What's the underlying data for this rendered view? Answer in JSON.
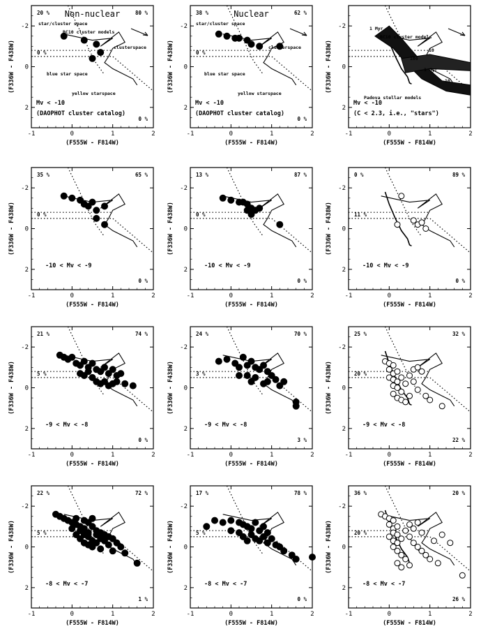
{
  "figure": {
    "x_label": "(F555W - F814W)",
    "y_label": "(F336W - F438W)"
  },
  "chart_data": [
    {
      "type": "scatter",
      "title": "Non-nuclear",
      "xlim": [
        -1,
        2
      ],
      "ylim": [
        3,
        -3
      ],
      "x_ticks": [
        "-1",
        "0",
        "1",
        "2"
      ],
      "y_ticks": [
        "-2",
        "0",
        "2"
      ],
      "percent_labels": {
        "top_left": "20 %",
        "top_right": "80 %",
        "mid_left": "0 %",
        "bottom_right": "0 %"
      },
      "condition": "Mv < -10",
      "condition_extra": "(DAOPHOT cluster catalog)",
      "annotations": [
        "star/cluster space",
        "BC10 cluster models",
        "clusterspace",
        "blue star space",
        "yellow starspace"
      ],
      "marker": "filled",
      "points": [
        [
          -0.2,
          -1.5
        ],
        [
          0.3,
          -1.3
        ],
        [
          0.6,
          -1.1
        ],
        [
          0.7,
          -0.7
        ],
        [
          0.5,
          -0.4
        ]
      ]
    },
    {
      "type": "scatter",
      "title": "Nuclear",
      "xlim": [
        -1,
        2
      ],
      "ylim": [
        3,
        -3
      ],
      "x_ticks": [
        "-1",
        "0",
        "1",
        "2"
      ],
      "y_ticks": [
        "-2",
        "0",
        "2"
      ],
      "percent_labels": {
        "top_left": "38 %",
        "top_right": "62 %",
        "mid_left": "0 %",
        "bottom_right": "0 %"
      },
      "condition": "Mv < -10",
      "condition_extra": "(DAOPHOT cluster catalog)",
      "annotations": [
        "star/cluster space",
        "clusterspace",
        "blue star space",
        "yellow starspace"
      ],
      "marker": "filled",
      "points": [
        [
          -0.3,
          -1.6
        ],
        [
          -0.1,
          -1.5
        ],
        [
          0.1,
          -1.4
        ],
        [
          0.2,
          -1.4
        ],
        [
          0.4,
          -1.3
        ],
        [
          0.5,
          -1.1
        ],
        [
          0.7,
          -1.0
        ],
        [
          1.2,
          -1.0
        ]
      ]
    },
    {
      "type": "scatter",
      "title": "",
      "xlim": [
        -1,
        2
      ],
      "ylim": [
        3,
        -3
      ],
      "x_ticks": [
        "-1",
        "0",
        "1",
        "2"
      ],
      "y_ticks": [
        "-2",
        "0",
        "2"
      ],
      "percent_labels": {
        "top_left": "",
        "top_right": "",
        "mid_left": "",
        "bottom_right": ""
      },
      "condition": "Mv < -10",
      "condition_extra": "(C < 2.3,    i.e., \"stars\")",
      "annotations": [
        "1 Myr",
        "BC10 cluster models",
        "100",
        "10",
        "1 Gyr",
        "10",
        "Padova stellar models"
      ],
      "marker": "band",
      "points": []
    },
    {
      "type": "scatter",
      "title": "",
      "xlim": [
        -1,
        2
      ],
      "ylim": [
        3,
        -3
      ],
      "x_ticks": [
        "-1",
        "0",
        "1",
        "2"
      ],
      "y_ticks": [
        "-2",
        "0",
        "2"
      ],
      "percent_labels": {
        "top_left": "35 %",
        "top_right": "65 %",
        "mid_left": "0 %",
        "bottom_right": "0 %"
      },
      "condition": "-10 < Mv < -9",
      "condition_extra": "",
      "annotations": [],
      "marker": "filled",
      "points": [
        [
          -0.2,
          -1.6
        ],
        [
          0.0,
          -1.5
        ],
        [
          0.2,
          -1.4
        ],
        [
          0.3,
          -1.2
        ],
        [
          0.4,
          -1.1
        ],
        [
          0.5,
          -1.3
        ],
        [
          0.6,
          -0.9
        ],
        [
          0.8,
          -1.1
        ],
        [
          0.6,
          -0.5
        ],
        [
          0.8,
          -0.2
        ]
      ]
    },
    {
      "type": "scatter",
      "title": "",
      "xlim": [
        -1,
        2
      ],
      "ylim": [
        3,
        -3
      ],
      "x_ticks": [
        "-1",
        "0",
        "1",
        "2"
      ],
      "y_ticks": [
        "-2",
        "0",
        "2"
      ],
      "percent_labels": {
        "top_left": "13 %",
        "top_right": "87 %",
        "mid_left": "0 %",
        "bottom_right": "0 %"
      },
      "condition": "-10 < Mv < -9",
      "condition_extra": "",
      "annotations": [],
      "marker": "filled",
      "points": [
        [
          -0.2,
          -1.5
        ],
        [
          0.0,
          -1.4
        ],
        [
          0.2,
          -1.3
        ],
        [
          0.3,
          -1.3
        ],
        [
          0.4,
          -1.2
        ],
        [
          0.5,
          -1.0
        ],
        [
          0.6,
          -0.9
        ],
        [
          0.7,
          -1.0
        ],
        [
          0.5,
          -0.7
        ],
        [
          0.4,
          -0.9
        ],
        [
          1.2,
          -0.2
        ]
      ]
    },
    {
      "type": "scatter",
      "title": "",
      "xlim": [
        -1,
        2
      ],
      "ylim": [
        3,
        -3
      ],
      "x_ticks": [
        "-1",
        "0",
        "1",
        "2"
      ],
      "y_ticks": [
        "-2",
        "0",
        "2"
      ],
      "percent_labels": {
        "top_left": "0 %",
        "top_right": "89 %",
        "mid_left": "11 %",
        "bottom_right": "0 %"
      },
      "condition": "-10 < Mv < -9",
      "condition_extra": "",
      "annotations": [],
      "marker": "open",
      "points": [
        [
          0.3,
          -1.6
        ],
        [
          0.6,
          -0.4
        ],
        [
          0.7,
          -0.2
        ],
        [
          0.8,
          -0.3
        ],
        [
          0.9,
          0.0
        ],
        [
          0.2,
          -0.2
        ]
      ]
    },
    {
      "type": "scatter",
      "title": "",
      "xlim": [
        -1,
        2
      ],
      "ylim": [
        3,
        -3
      ],
      "x_ticks": [
        "-1",
        "0",
        "1",
        "2"
      ],
      "y_ticks": [
        "-2",
        "0",
        "2"
      ],
      "percent_labels": {
        "top_left": "21 %",
        "top_right": "74 %",
        "mid_left": "5 %",
        "bottom_right": "0 %"
      },
      "condition": "-9 < Mv < -8",
      "condition_extra": "",
      "annotations": [],
      "marker": "filled",
      "points": [
        [
          -0.3,
          -1.6
        ],
        [
          -0.2,
          -1.5
        ],
        [
          -0.1,
          -1.4
        ],
        [
          0.0,
          -1.5
        ],
        [
          0.1,
          -1.2
        ],
        [
          0.2,
          -1.1
        ],
        [
          0.3,
          -1.3
        ],
        [
          0.4,
          -1.0
        ],
        [
          0.5,
          -1.2
        ],
        [
          0.6,
          -0.9
        ],
        [
          0.7,
          -0.8
        ],
        [
          0.8,
          -1.0
        ],
        [
          0.9,
          -0.7
        ],
        [
          1.0,
          -0.9
        ],
        [
          1.1,
          -0.6
        ],
        [
          1.2,
          -0.7
        ],
        [
          0.3,
          -0.6
        ],
        [
          0.5,
          -0.5
        ],
        [
          0.6,
          -0.3
        ],
        [
          0.7,
          -0.2
        ],
        [
          0.8,
          -0.3
        ],
        [
          0.9,
          -0.1
        ],
        [
          1.0,
          -0.2
        ],
        [
          1.1,
          -0.3
        ],
        [
          1.3,
          -0.2
        ],
        [
          0.4,
          -0.8
        ],
        [
          0.2,
          -0.7
        ],
        [
          1.5,
          -0.1
        ]
      ]
    },
    {
      "type": "scatter",
      "title": "",
      "xlim": [
        -1,
        2
      ],
      "ylim": [
        3,
        -3
      ],
      "x_ticks": [
        "-1",
        "0",
        "1",
        "2"
      ],
      "y_ticks": [
        "-2",
        "0",
        "2"
      ],
      "percent_labels": {
        "top_left": "24 %",
        "top_right": "70 %",
        "mid_left": "3 %",
        "bottom_right": "3 %"
      },
      "condition": "-9 < Mv < -8",
      "condition_extra": "",
      "annotations": [],
      "marker": "filled",
      "points": [
        [
          -0.3,
          -1.3
        ],
        [
          -0.1,
          -1.4
        ],
        [
          0.1,
          -1.2
        ],
        [
          0.2,
          -1.0
        ],
        [
          0.3,
          -1.5
        ],
        [
          0.4,
          -1.1
        ],
        [
          0.5,
          -1.3
        ],
        [
          0.6,
          -1.0
        ],
        [
          0.7,
          -0.9
        ],
        [
          0.8,
          -1.1
        ],
        [
          0.9,
          -0.8
        ],
        [
          1.0,
          -0.6
        ],
        [
          1.1,
          -0.4
        ],
        [
          0.4,
          -0.6
        ],
        [
          0.6,
          -0.5
        ],
        [
          0.8,
          -0.2
        ],
        [
          1.2,
          -0.1
        ],
        [
          1.3,
          -0.3
        ],
        [
          0.5,
          -0.3
        ],
        [
          0.2,
          -0.6
        ],
        [
          0.9,
          -0.3
        ],
        [
          1.6,
          0.7
        ],
        [
          1.6,
          0.9
        ]
      ]
    },
    {
      "type": "scatter",
      "title": "",
      "xlim": [
        -1,
        2
      ],
      "ylim": [
        3,
        -3
      ],
      "x_ticks": [
        "-1",
        "0",
        "1",
        "2"
      ],
      "y_ticks": [
        "-2",
        "0",
        "2"
      ],
      "percent_labels": {
        "top_left": "25 %",
        "top_right": "32 %",
        "mid_left": "20 %",
        "bottom_right": "22 %"
      },
      "condition": "-9 < Mv < -8",
      "condition_extra": "",
      "annotations": [],
      "marker": "open",
      "points": [
        [
          -0.1,
          -1.3
        ],
        [
          0.0,
          -1.2
        ],
        [
          0.1,
          -1.1
        ],
        [
          0.0,
          -0.9
        ],
        [
          0.1,
          -0.7
        ],
        [
          0.2,
          -0.8
        ],
        [
          0.0,
          -0.5
        ],
        [
          0.1,
          -0.4
        ],
        [
          0.2,
          -0.3
        ],
        [
          0.1,
          -0.1
        ],
        [
          0.2,
          0.0
        ],
        [
          0.3,
          0.2
        ],
        [
          0.1,
          0.3
        ],
        [
          0.2,
          0.5
        ],
        [
          0.3,
          0.6
        ],
        [
          0.4,
          0.7
        ],
        [
          0.4,
          -0.2
        ],
        [
          0.5,
          -0.6
        ],
        [
          0.6,
          -0.9
        ],
        [
          0.7,
          -1.0
        ],
        [
          0.8,
          -0.8
        ],
        [
          0.6,
          -0.3
        ],
        [
          0.7,
          0.1
        ],
        [
          0.9,
          0.4
        ],
        [
          1.0,
          0.6
        ],
        [
          1.3,
          0.9
        ],
        [
          0.5,
          0.4
        ],
        [
          0.3,
          -0.5
        ]
      ]
    },
    {
      "type": "scatter",
      "title": "",
      "xlim": [
        -1,
        2
      ],
      "ylim": [
        3,
        -3
      ],
      "x_ticks": [
        "-1",
        "0",
        "1",
        "2"
      ],
      "y_ticks": [
        "-2",
        "0",
        "2"
      ],
      "percent_labels": {
        "top_left": "22 %",
        "top_right": "72 %",
        "mid_left": "5 %",
        "bottom_right": "1 %"
      },
      "condition": "-8 < Mv < -7",
      "condition_extra": "",
      "annotations": [],
      "marker": "filled",
      "points": [
        [
          -0.4,
          -1.6
        ],
        [
          -0.3,
          -1.5
        ],
        [
          -0.2,
          -1.4
        ],
        [
          -0.1,
          -1.3
        ],
        [
          0.0,
          -1.2
        ],
        [
          0.1,
          -1.1
        ],
        [
          0.2,
          -1.0
        ],
        [
          0.3,
          -0.9
        ],
        [
          0.4,
          -1.2
        ],
        [
          0.5,
          -1.0
        ],
        [
          0.6,
          -0.8
        ],
        [
          0.7,
          -0.7
        ],
        [
          0.8,
          -0.6
        ],
        [
          0.9,
          -0.5
        ],
        [
          1.0,
          -0.4
        ],
        [
          0.1,
          -1.4
        ],
        [
          0.3,
          -1.3
        ],
        [
          0.5,
          -1.4
        ],
        [
          0.2,
          -0.8
        ],
        [
          0.3,
          -0.6
        ],
        [
          0.4,
          -0.5
        ],
        [
          0.5,
          -0.3
        ],
        [
          0.6,
          -0.2
        ],
        [
          0.7,
          -0.4
        ],
        [
          0.8,
          -0.3
        ],
        [
          0.9,
          -0.1
        ],
        [
          1.1,
          -0.2
        ],
        [
          1.2,
          0.0
        ],
        [
          0.4,
          -0.7
        ],
        [
          0.6,
          -0.6
        ],
        [
          0.0,
          -0.9
        ],
        [
          0.1,
          -0.6
        ],
        [
          0.3,
          -0.2
        ],
        [
          0.5,
          0.0
        ],
        [
          0.7,
          0.1
        ],
        [
          1.0,
          0.2
        ],
        [
          1.3,
          0.3
        ],
        [
          0.2,
          -0.4
        ],
        [
          0.4,
          -0.1
        ],
        [
          1.6,
          0.8
        ]
      ]
    },
    {
      "type": "scatter",
      "title": "",
      "xlim": [
        -1,
        2
      ],
      "ylim": [
        3,
        -3
      ],
      "x_ticks": [
        "-1",
        "0",
        "1",
        "2"
      ],
      "y_ticks": [
        "-2",
        "0",
        "2"
      ],
      "percent_labels": {
        "top_left": "17 %",
        "top_right": "78 %",
        "mid_left": "5 %",
        "bottom_right": "0 %"
      },
      "condition": "-8 < Mv < -7",
      "condition_extra": "",
      "annotations": [],
      "marker": "filled",
      "points": [
        [
          -0.6,
          -1.0
        ],
        [
          -0.4,
          -1.3
        ],
        [
          -0.2,
          -1.2
        ],
        [
          0.0,
          -1.3
        ],
        [
          0.2,
          -1.2
        ],
        [
          0.3,
          -1.1
        ],
        [
          0.4,
          -1.0
        ],
        [
          0.5,
          -0.9
        ],
        [
          0.6,
          -1.2
        ],
        [
          0.7,
          -0.8
        ],
        [
          0.8,
          -1.0
        ],
        [
          0.9,
          -0.7
        ],
        [
          0.5,
          -0.6
        ],
        [
          0.6,
          -0.4
        ],
        [
          0.7,
          -0.3
        ],
        [
          0.8,
          -0.5
        ],
        [
          0.9,
          -0.2
        ],
        [
          1.0,
          -0.4
        ],
        [
          1.1,
          -0.1
        ],
        [
          1.2,
          0.0
        ],
        [
          0.4,
          -0.3
        ],
        [
          0.3,
          -0.5
        ],
        [
          1.3,
          0.2
        ],
        [
          1.5,
          0.4
        ],
        [
          1.6,
          0.6
        ],
        [
          2.0,
          0.5
        ],
        [
          0.0,
          -0.8
        ],
        [
          0.2,
          -0.7
        ]
      ]
    },
    {
      "type": "scatter",
      "title": "",
      "xlim": [
        -1,
        2
      ],
      "ylim": [
        3,
        -3
      ],
      "x_ticks": [
        "-1",
        "0",
        "1",
        "2"
      ],
      "y_ticks": [
        "-2",
        "0",
        "2"
      ],
      "percent_labels": {
        "top_left": "36 %",
        "top_right": "20 %",
        "mid_left": "20 %",
        "bottom_right": "26 %"
      },
      "condition": "-8 < Mv < -7",
      "condition_extra": "",
      "annotations": [],
      "marker": "open",
      "points": [
        [
          -0.2,
          -1.6
        ],
        [
          -0.1,
          -1.5
        ],
        [
          0.0,
          -1.4
        ],
        [
          0.1,
          -1.3
        ],
        [
          0.0,
          -1.1
        ],
        [
          0.1,
          -0.9
        ],
        [
          0.2,
          -1.0
        ],
        [
          0.1,
          -0.7
        ],
        [
          0.2,
          -0.6
        ],
        [
          0.0,
          -0.5
        ],
        [
          0.1,
          -0.3
        ],
        [
          0.2,
          -0.2
        ],
        [
          0.1,
          0.0
        ],
        [
          0.2,
          0.2
        ],
        [
          0.3,
          0.4
        ],
        [
          0.4,
          0.6
        ],
        [
          0.3,
          -0.4
        ],
        [
          0.4,
          -0.8
        ],
        [
          0.5,
          -1.1
        ],
        [
          0.6,
          -0.9
        ],
        [
          0.7,
          -1.2
        ],
        [
          0.8,
          -0.7
        ],
        [
          0.5,
          -0.5
        ],
        [
          0.6,
          -0.2
        ],
        [
          0.7,
          0.0
        ],
        [
          0.8,
          0.2
        ],
        [
          0.9,
          0.4
        ],
        [
          1.0,
          0.6
        ],
        [
          1.2,
          0.8
        ],
        [
          1.1,
          -0.3
        ],
        [
          1.3,
          -0.6
        ],
        [
          1.5,
          -0.2
        ],
        [
          1.8,
          1.4
        ],
        [
          0.5,
          0.9
        ],
        [
          0.3,
          1.0
        ],
        [
          0.2,
          0.8
        ]
      ]
    }
  ]
}
